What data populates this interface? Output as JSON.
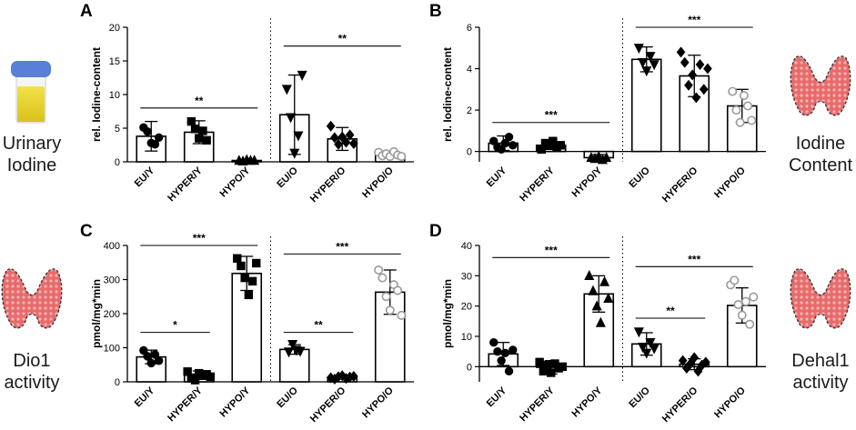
{
  "side_labels": {
    "urinary": [
      "Urinary",
      "Iodine"
    ],
    "iodine_content": [
      "Iodine",
      "Content"
    ],
    "dio1": [
      "Dio1",
      "activity"
    ],
    "dehal1": [
      "Dehal1",
      "activity"
    ]
  },
  "chart_data": [
    {
      "panel": "A",
      "type": "bar",
      "ylabel": "rel. Iodine-content",
      "ylim": [
        0,
        20
      ],
      "yticks": [
        0,
        5,
        10,
        15,
        20
      ],
      "categories": [
        "EU/Y",
        "HYPER/Y",
        "HYPO/Y",
        "EU/O",
        "HYPER/O",
        "HYPO/O"
      ],
      "values": [
        3.8,
        4.4,
        0.2,
        7.0,
        3.4,
        1.1
      ],
      "errors": [
        2.2,
        1.7,
        0.15,
        5.9,
        1.7,
        0.4
      ],
      "points": [
        [
          5.1,
          4.5,
          2.8,
          2.6,
          3.6
        ],
        [
          6.0,
          4.9,
          3.5,
          4.6,
          3.2
        ],
        [
          0.2,
          0.1,
          0.3,
          0.2,
          0.2
        ],
        [
          10.8,
          6.6,
          1.3,
          3.9,
          12.9
        ],
        [
          5.3,
          3.6,
          2.6,
          3.7,
          2.9,
          4.0,
          2.7
        ],
        [
          1.4,
          0.9,
          1.2,
          0.8,
          1.5,
          1.0,
          0.8
        ]
      ],
      "markers": [
        "circle",
        "square",
        "triangle",
        "triangle-down",
        "diamond",
        "open-circle"
      ],
      "significance": [
        {
          "from": 0,
          "to": 2,
          "level": 8.0,
          "label": "**"
        },
        {
          "from": 3,
          "to": 5,
          "level": 17.2,
          "label": "**"
        }
      ]
    },
    {
      "panel": "B",
      "type": "bar",
      "ylabel": "rel. Iodine-content",
      "ylim": [
        -0.5,
        6
      ],
      "yticks": [
        0,
        2,
        4,
        6
      ],
      "categories": [
        "EU/Y",
        "HYPER/Y",
        "HYPO/Y",
        "EU/O",
        "HYPER/O",
        "HYPO/O"
      ],
      "values": [
        0.4,
        0.3,
        -0.3,
        4.45,
        3.65,
        2.2
      ],
      "errors": [
        0.35,
        0.2,
        0.15,
        0.6,
        1.0,
        0.8
      ],
      "points": [
        [
          0.5,
          0.2,
          0.1,
          0.4,
          0.7,
          0.3
        ],
        [
          0.1,
          0.4,
          0.3,
          0.5,
          0.2,
          0.3
        ],
        [
          -0.3,
          -0.35,
          -0.25,
          -0.4,
          -0.3
        ],
        [
          5.0,
          4.3,
          3.9,
          4.6,
          4.2
        ],
        [
          4.8,
          4.3,
          3.2,
          3.7,
          2.6,
          4.2,
          3.0,
          4.0
        ],
        [
          2.9,
          2.0,
          1.4,
          2.7,
          2.2,
          1.5
        ]
      ],
      "markers": [
        "circle",
        "square",
        "triangle",
        "triangle-down",
        "diamond",
        "open-circle"
      ],
      "significance": [
        {
          "from": 0,
          "to": 2,
          "level": 1.4,
          "label": "***"
        },
        {
          "from": 3,
          "to": 5,
          "level": 6.0,
          "label": "***"
        }
      ]
    },
    {
      "panel": "C",
      "type": "bar",
      "ylabel": "pmol/mg*min",
      "ylim": [
        0,
        400
      ],
      "yticks": [
        0,
        100,
        200,
        300,
        400
      ],
      "categories": [
        "EU/Y",
        "HYPER/Y",
        "HYPO/Y",
        "EU/O",
        "HYPER/O",
        "HYPO/O"
      ],
      "values": [
        73,
        20,
        318,
        95,
        13,
        263
      ],
      "errors": [
        20,
        12,
        50,
        14,
        5,
        65
      ],
      "points": [
        [
          92,
          75,
          55,
          80,
          62
        ],
        [
          30,
          12,
          5,
          25,
          18,
          22,
          15
        ],
        [
          362,
          340,
          305,
          255,
          295,
          348
        ],
        [
          88,
          110,
          93,
          90
        ],
        [
          12,
          8,
          15,
          18,
          10,
          14,
          16
        ],
        [
          328,
          305,
          250,
          210,
          285,
          268,
          195
        ]
      ],
      "markers": [
        "circle",
        "square",
        "square",
        "triangle-down",
        "diamond",
        "open-circle"
      ],
      "significance": [
        {
          "from": 0,
          "to": 1,
          "level": 145,
          "label": "*"
        },
        {
          "from": 0,
          "to": 2,
          "level": 400,
          "label": "***"
        },
        {
          "from": 3,
          "to": 4,
          "level": 145,
          "label": "**"
        },
        {
          "from": 3,
          "to": 5,
          "level": 375,
          "label": "***"
        }
      ]
    },
    {
      "panel": "D",
      "type": "bar",
      "ylabel": "pmol/mg*min",
      "ylim": [
        -5,
        40
      ],
      "yticks": [
        0,
        10,
        20,
        30,
        40
      ],
      "categories": [
        "EU/Y",
        "HYPER/Y",
        "HYPO/Y",
        "EU/O",
        "HYPER/O",
        "HYPO/O"
      ],
      "values": [
        4.2,
        -0.2,
        24,
        7.5,
        0.8,
        20.2
      ],
      "errors": [
        3.8,
        2.2,
        6.0,
        3.7,
        1.8,
        5.8
      ],
      "points": [
        [
          8.0,
          5.0,
          2.0,
          4.5,
          -1.5,
          5.5
        ],
        [
          1.5,
          -1.5,
          0.5,
          -2.0,
          1.0,
          -0.5,
          0.0
        ],
        [
          30.0,
          25.0,
          20.0,
          14.5,
          28.0,
          22.5
        ],
        [
          11.5,
          6.5,
          4.5,
          8.0,
          6.0
        ],
        [
          2.0,
          -0.5,
          1.0,
          3.0,
          -1.5,
          0.5,
          1.5
        ],
        [
          27.0,
          28.5,
          20.5,
          17.0,
          21.5,
          14.0,
          23.0
        ]
      ],
      "markers": [
        "circle",
        "square",
        "triangle",
        "triangle-down",
        "diamond",
        "open-circle"
      ],
      "significance": [
        {
          "from": 0,
          "to": 2,
          "level": 36,
          "label": "***"
        },
        {
          "from": 3,
          "to": 4,
          "level": 16,
          "label": "**"
        },
        {
          "from": 3,
          "to": 5,
          "level": 33,
          "label": "***"
        }
      ]
    }
  ]
}
